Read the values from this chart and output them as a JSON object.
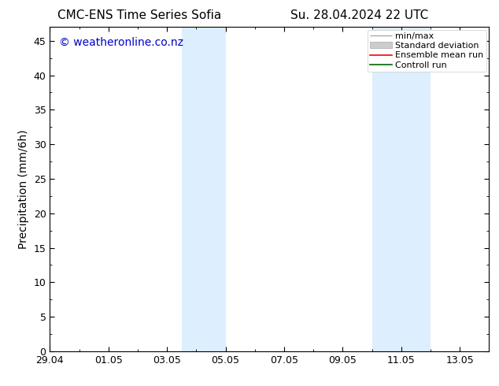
{
  "title_left": "CMC-ENS Time Series Sofia",
  "title_right": "Su. 28.04.2024 22 UTC",
  "ylabel": "Precipitation (mm/6h)",
  "watermark": "© weatheronline.co.nz",
  "watermark_color": "#0000cc",
  "ylim": [
    0,
    47
  ],
  "yticks": [
    0,
    5,
    10,
    15,
    20,
    25,
    30,
    35,
    40,
    45
  ],
  "xtick_labels": [
    "29.04",
    "01.05",
    "03.05",
    "05.05",
    "07.05",
    "09.05",
    "11.05",
    "13.05"
  ],
  "xtick_positions": [
    0,
    2,
    4,
    6,
    8,
    10,
    12,
    14
  ],
  "xlim": [
    0,
    15
  ],
  "shaded_regions": [
    {
      "start": 4.5,
      "end": 6.0
    },
    {
      "start": 11.0,
      "end": 13.0
    }
  ],
  "shaded_color": "#ddeeff",
  "background_color": "#ffffff",
  "legend_labels": [
    "min/max",
    "Standard deviation",
    "Ensemble mean run",
    "Controll run"
  ],
  "legend_colors": [
    "#999999",
    "#cccccc",
    "#ff0000",
    "#006600"
  ],
  "title_fontsize": 11,
  "tick_fontsize": 9,
  "ylabel_fontsize": 10,
  "watermark_fontsize": 10,
  "legend_fontsize": 8
}
